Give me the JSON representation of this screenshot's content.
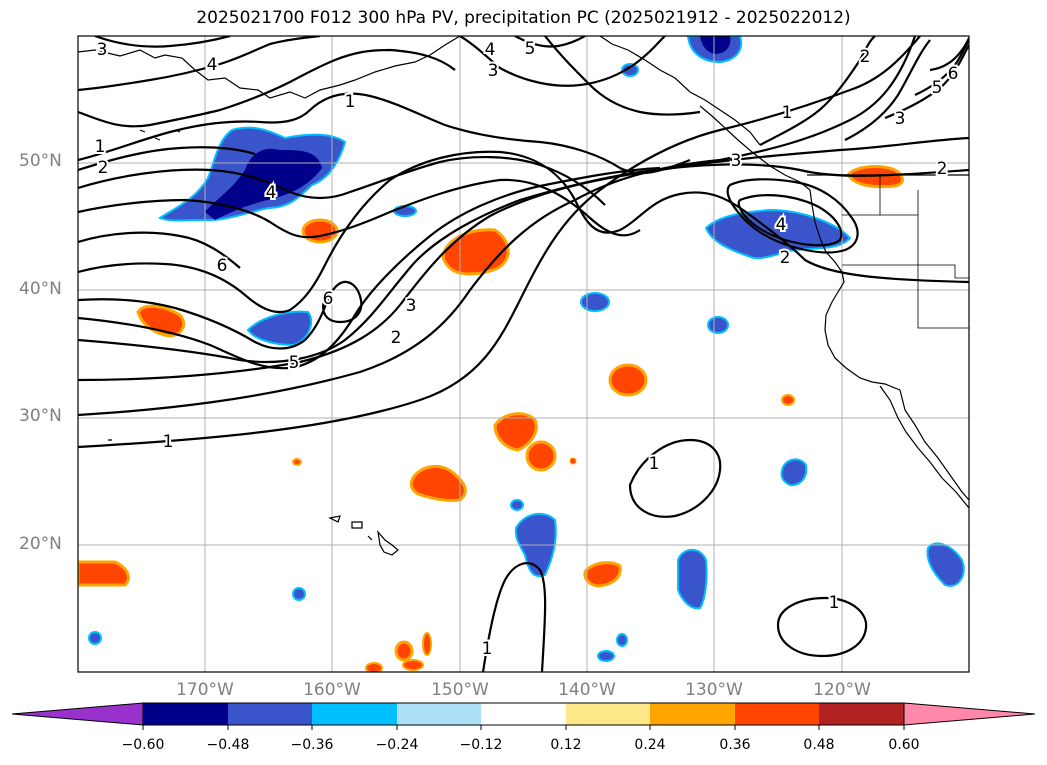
{
  "title": "2025021700 F012 300 hPa PV, precipitation PC (2025021912 - 2025022012)",
  "map": {
    "type": "geographic-map",
    "projection": "PlateCarree",
    "extent": {
      "lon_min": -180,
      "lon_max": -110,
      "lat_min": 10,
      "lat_max": 60
    },
    "gridlines": true,
    "lat_labels": [
      "50°N",
      "40°N",
      "30°N",
      "20°N"
    ],
    "lon_labels": [
      "170°W",
      "160°W",
      "150°W",
      "140°W",
      "130°W",
      "120°W"
    ],
    "pv_contour_labels": [
      "3",
      "4",
      "4",
      "5",
      "3",
      "1",
      "1",
      "2",
      "6",
      "5",
      "6",
      "3",
      "2",
      "1",
      "4",
      "3",
      "1",
      "2",
      "2",
      "5",
      "6",
      "3",
      "4",
      "2",
      "1",
      "1",
      "1"
    ],
    "pc_colors": {
      "negative": [
        "#9932CC",
        "#00008B",
        "#3A55CC",
        "#00BFFF",
        "#ADE0F8"
      ],
      "neutral": "#FFFFFF",
      "positive": [
        "#FFE88A",
        "#FFA500",
        "#FF4500",
        "#B22222",
        "#FF88AA"
      ]
    }
  },
  "colorbar": {
    "ticks": [
      "−0.60",
      "−0.48",
      "−0.36",
      "−0.24",
      "−0.12",
      "0.12",
      "0.24",
      "0.36",
      "0.48",
      "0.60"
    ],
    "colors": [
      "#9932CC",
      "#00008B",
      "#3A55CC",
      "#00BFFF",
      "#ADE0F8",
      "#FFFFFF",
      "#FFE88A",
      "#FFA500",
      "#FF4500",
      "#B22222",
      "#FF88AA"
    ]
  }
}
